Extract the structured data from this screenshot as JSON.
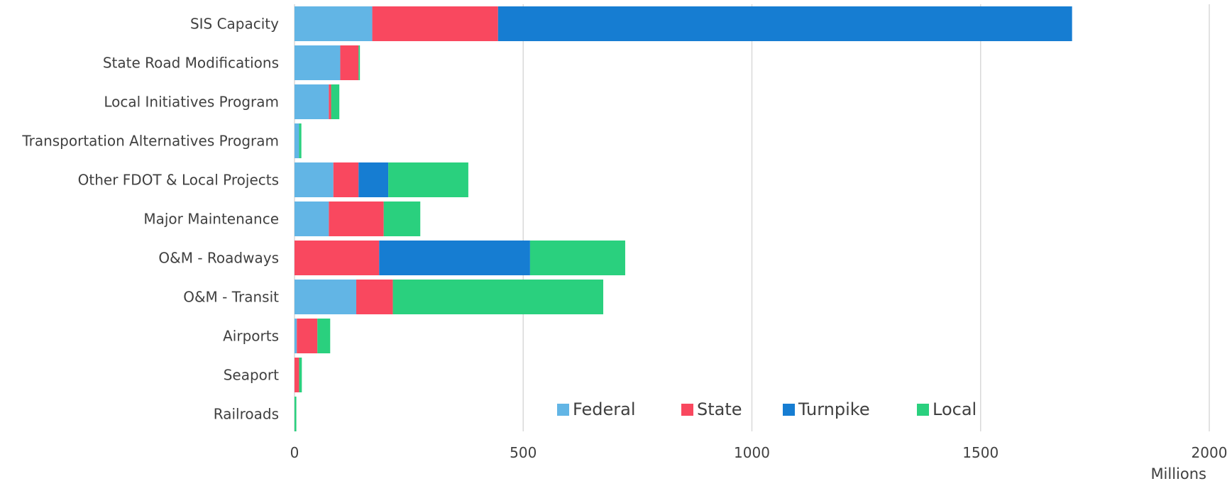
{
  "chart_data": {
    "type": "bar",
    "orientation": "horizontal",
    "stacked": true,
    "categories": [
      "SIS Capacity",
      "State Road Modifications",
      "Local Initiatives Program",
      "Transportation Alternatives Program",
      "Other FDOT & Local Projects",
      "Major Maintenance",
      "O&M - Roadways",
      "O&M - Transit",
      "Airports",
      "Seaport",
      "Railroads"
    ],
    "series": [
      {
        "name": "Federal",
        "color": "#62B5E5",
        "values": [
          170,
          100,
          75,
          10,
          85,
          75,
          0,
          135,
          5,
          0,
          0
        ]
      },
      {
        "name": "State",
        "color": "#F9485F",
        "values": [
          275,
          40,
          5,
          0,
          55,
          120,
          185,
          80,
          45,
          10,
          0
        ]
      },
      {
        "name": "Turnpike",
        "color": "#167DD2",
        "values": [
          1255,
          0,
          0,
          0,
          65,
          0,
          330,
          0,
          0,
          0,
          0
        ]
      },
      {
        "name": "Local",
        "color": "#2AD07E",
        "values": [
          0,
          3,
          18,
          5,
          175,
          80,
          208,
          460,
          28,
          6,
          4
        ]
      }
    ],
    "xlim": [
      0,
      2000
    ],
    "xticks": [
      "0",
      "500",
      "1000",
      "1500",
      "2000"
    ],
    "xlabel": "Millions",
    "ylabel": "",
    "title": "",
    "grid": "vertical",
    "legend_position": "bottom-right inside"
  }
}
